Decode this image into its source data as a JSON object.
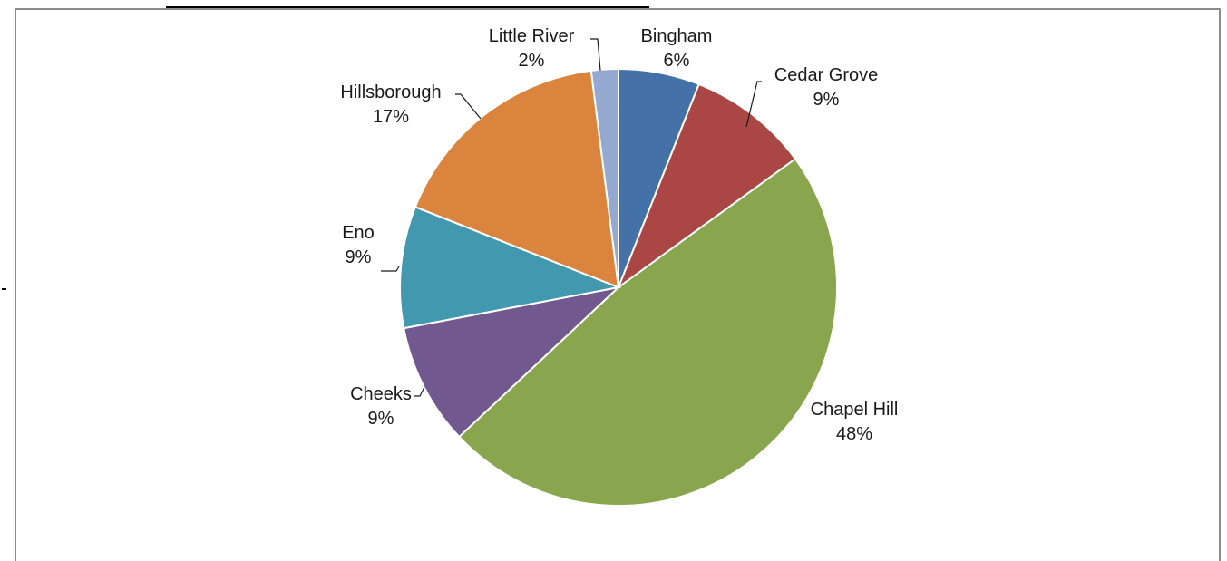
{
  "chart_data": {
    "type": "pie",
    "title": "",
    "slices": [
      {
        "name": "Bingham",
        "value": 6,
        "label": "6%",
        "color": "#4472a8"
      },
      {
        "name": "Cedar Grove",
        "value": 9,
        "label": "9%",
        "color": "#aa4644"
      },
      {
        "name": "Chapel Hill",
        "value": 48,
        "label": "48%",
        "color": "#89a54e"
      },
      {
        "name": "Cheeks",
        "value": 9,
        "label": "9%",
        "color": "#71588f"
      },
      {
        "name": "Eno",
        "value": 9,
        "label": "9%",
        "color": "#4298af"
      },
      {
        "name": "Hillsborough",
        "value": 17,
        "label": "17%",
        "color": "#db843d"
      },
      {
        "name": "Little River",
        "value": 2,
        "label": "2%",
        "color": "#93a9cf"
      }
    ],
    "data_labels": "category name and percentage, with leader lines"
  }
}
